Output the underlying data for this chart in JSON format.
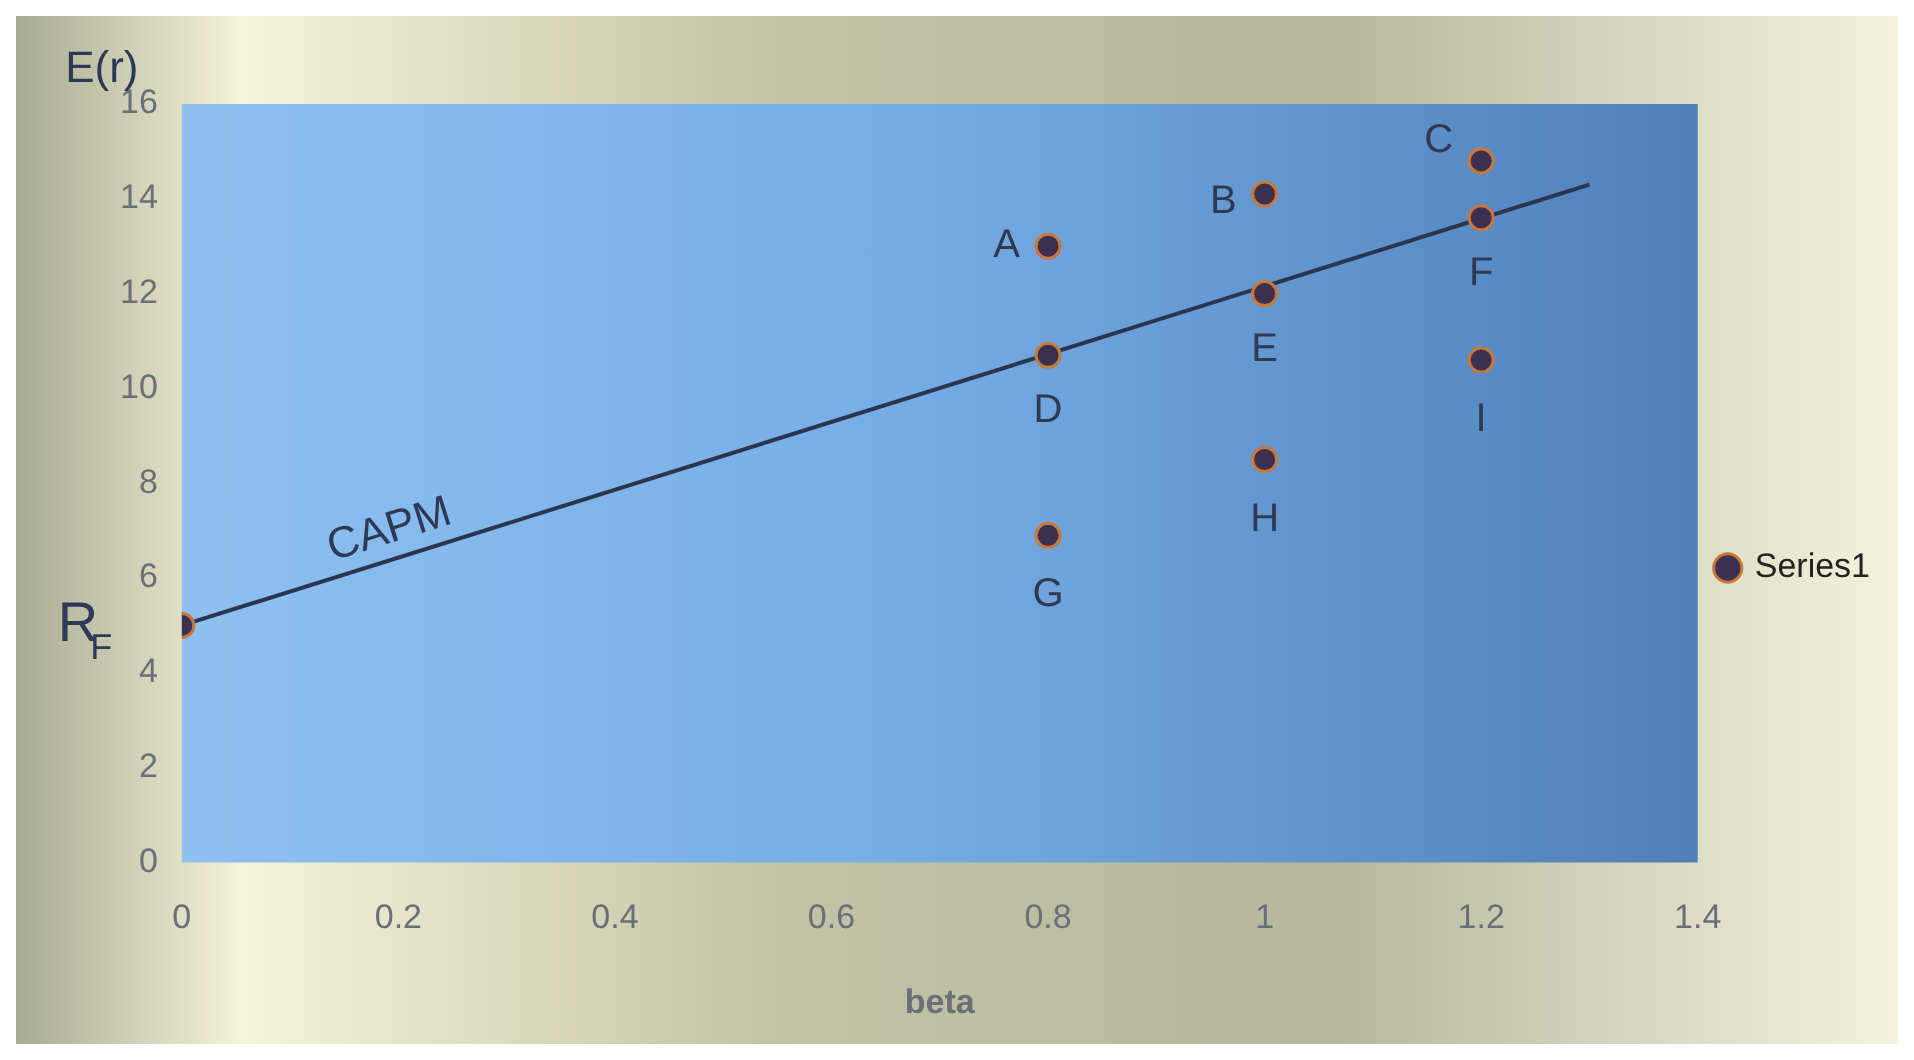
{
  "chart_data": {
    "type": "scatter",
    "xlabel": "beta",
    "ylabel": "E(r)",
    "xlim": [
      0,
      1.4
    ],
    "xticks": [
      0,
      0.2,
      0.4,
      0.6,
      0.8,
      1,
      1.2,
      1.4
    ],
    "ylim": [
      0,
      16
    ],
    "yticks": [
      0,
      2,
      4,
      6,
      8,
      10,
      12,
      14,
      16
    ],
    "grid": false,
    "legend": "right",
    "series": [
      {
        "name": "Series1",
        "marker": "circle",
        "color": "#3b3050",
        "x": [
          0,
          0.8,
          1,
          1.2,
          0.8,
          1,
          1.2,
          0.8,
          1,
          1.2
        ],
        "values": [
          5,
          13,
          14.1,
          14.8,
          10.7,
          12,
          13.6,
          6.9,
          8.5,
          10.6
        ]
      },
      {
        "type": "line",
        "color": "#2a3550",
        "line_style": "solid",
        "x": [
          0,
          1.3
        ],
        "values": [
          5,
          14.3
        ]
      }
    ],
    "annotations": [
      {
        "text": "A",
        "x": 0.8,
        "y": 13
      },
      {
        "text": "B",
        "x": 1,
        "y": 14.1
      },
      {
        "text": "C",
        "x": 1.2,
        "y": 14.8
      },
      {
        "text": "D",
        "x": 0.8,
        "y": 10.7
      },
      {
        "text": "E",
        "x": 1,
        "y": 12
      },
      {
        "text": "F",
        "x": 1.2,
        "y": 13.6
      },
      {
        "text": "G",
        "x": 0.8,
        "y": 6.9
      },
      {
        "text": "H",
        "x": 1,
        "y": 8.5
      },
      {
        "text": "I",
        "x": 1.2,
        "y": 10.6
      },
      {
        "text": "R$_{F}$",
        "x": 0,
        "y": 5
      },
      {
        "text": "CAPM",
        "x": 0.2,
        "y": 6.4
      }
    ]
  }
}
